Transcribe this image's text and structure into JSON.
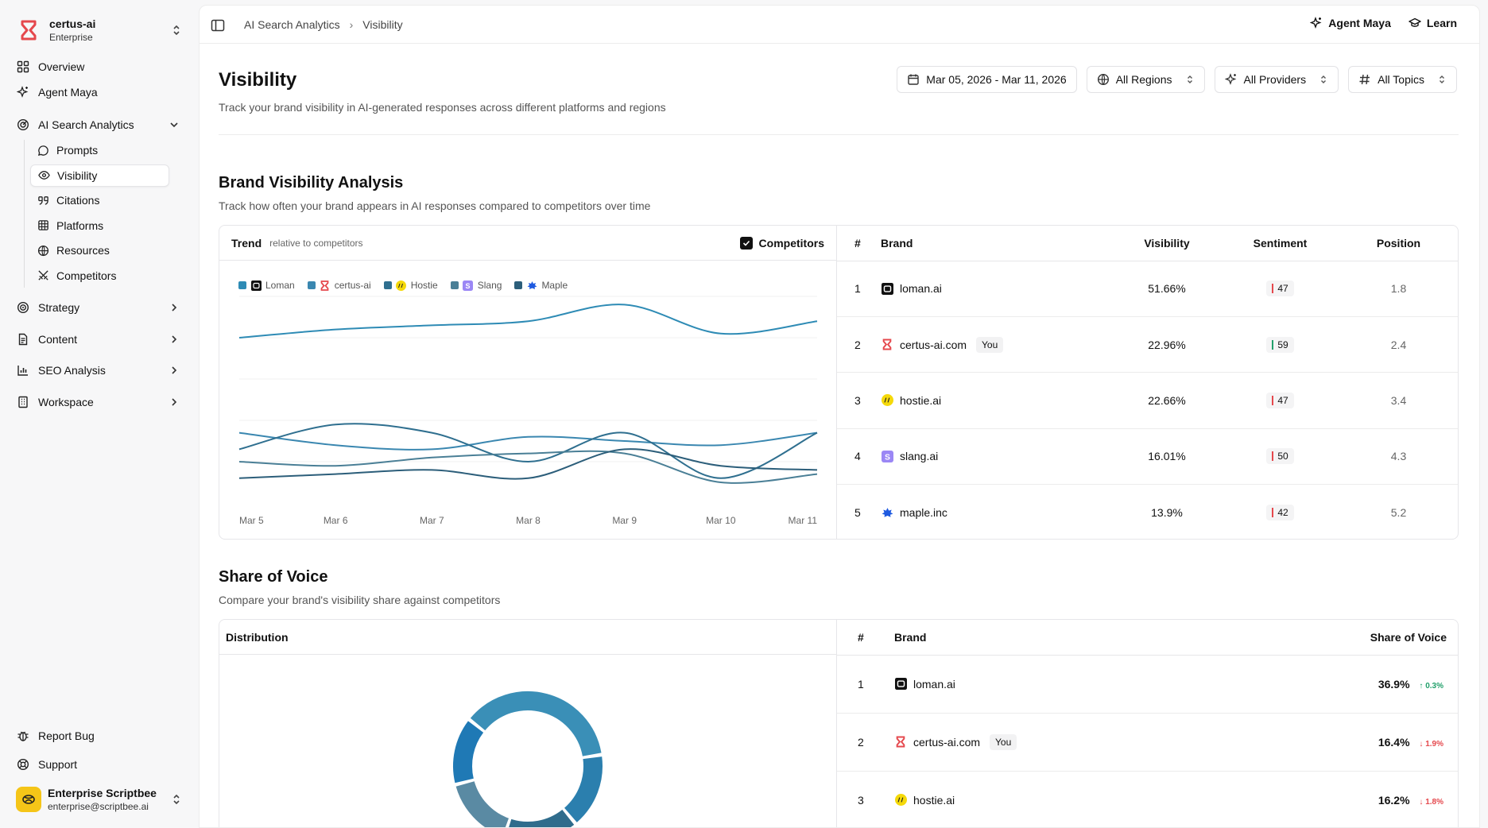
{
  "org": {
    "name": "certus-ai",
    "plan": "Enterprise"
  },
  "nav": {
    "overview": "Overview",
    "agent_maya": "Agent Maya",
    "ai_search": "AI Search Analytics",
    "sub": [
      "Prompts",
      "Visibility",
      "Citations",
      "Platforms",
      "Resources",
      "Competitors"
    ],
    "strategy": "Strategy",
    "content": "Content",
    "seo": "SEO Analysis",
    "workspace": "Workspace",
    "report_bug": "Report Bug",
    "support": "Support"
  },
  "user": {
    "name": "Enterprise Scriptbee",
    "email": "enterprise@scriptbee.ai"
  },
  "breadcrumb": {
    "parent": "AI Search Analytics",
    "current": "Visibility"
  },
  "top_actions": {
    "agent": "Agent Maya",
    "learn": "Learn"
  },
  "page": {
    "title": "Visibility",
    "subtitle": "Track your brand visibility in AI-generated responses across different platforms and regions"
  },
  "filters": {
    "date": "Mar 05, 2026 - Mar 11, 2026",
    "regions": "All Regions",
    "providers": "All Providers",
    "topics": "All Topics"
  },
  "brand_visibility": {
    "title": "Brand Visibility Analysis",
    "subtitle": "Track how often your brand appears in AI responses compared to competitors over time",
    "trend_label": "Trend",
    "trend_note": "relative to competitors",
    "competitors_label": "Competitors",
    "columns": [
      "#",
      "Brand",
      "Visibility",
      "Sentiment",
      "Position"
    ],
    "rows": [
      {
        "rank": "1",
        "brand": "loman.ai",
        "icon": "loman-icon",
        "you": "",
        "visibility": "51.66%",
        "sentiment": "47",
        "sentiment_color": "#e5484d",
        "position": "1.8"
      },
      {
        "rank": "2",
        "brand": "certus-ai.com",
        "icon": "certus-icon",
        "you": "You",
        "visibility": "22.96%",
        "sentiment": "59",
        "sentiment_color": "#22a06b",
        "position": "2.4"
      },
      {
        "rank": "3",
        "brand": "hostie.ai",
        "icon": "hostie-icon",
        "you": "",
        "visibility": "22.66%",
        "sentiment": "47",
        "sentiment_color": "#e5484d",
        "position": "3.4"
      },
      {
        "rank": "4",
        "brand": "slang.ai",
        "icon": "slang-icon",
        "you": "",
        "visibility": "16.01%",
        "sentiment": "50",
        "sentiment_color": "#e5484d",
        "position": "4.3"
      },
      {
        "rank": "5",
        "brand": "maple.inc",
        "icon": "maple-icon",
        "you": "",
        "visibility": "13.9%",
        "sentiment": "42",
        "sentiment_color": "#e5484d",
        "position": "5.2"
      }
    ]
  },
  "chart_data": {
    "type": "line",
    "x": [
      "Mar 5",
      "Mar 6",
      "Mar 7",
      "Mar 8",
      "Mar 9",
      "Mar 10",
      "Mar 11"
    ],
    "series": [
      {
        "name": "Loman",
        "color": "#2e8bb5",
        "values": [
          0.6,
          0.62,
          0.63,
          0.64,
          0.68,
          0.61,
          0.64
        ]
      },
      {
        "name": "certus-ai",
        "color": "#3a87b0",
        "values": [
          0.37,
          0.34,
          0.33,
          0.36,
          0.35,
          0.34,
          0.37
        ]
      },
      {
        "name": "Hostie",
        "color": "#2f6f8f",
        "values": [
          0.33,
          0.39,
          0.37,
          0.3,
          0.37,
          0.26,
          0.37
        ]
      },
      {
        "name": "Slang",
        "color": "#4a7f96",
        "values": [
          0.3,
          0.29,
          0.31,
          0.32,
          0.32,
          0.25,
          0.27
        ]
      },
      {
        "name": "Maple",
        "color": "#2c5e7a",
        "values": [
          0.26,
          0.27,
          0.28,
          0.26,
          0.33,
          0.29,
          0.28
        ]
      }
    ]
  },
  "share_of_voice": {
    "title": "Share of Voice",
    "subtitle": "Compare your brand's visibility share against competitors",
    "distribution_label": "Distribution",
    "columns": [
      "#",
      "Brand",
      "Share of Voice"
    ],
    "rows": [
      {
        "rank": "1",
        "brand": "loman.ai",
        "icon": "loman-icon",
        "you": "",
        "share": "36.9%",
        "delta": "0.3%",
        "dir": "up"
      },
      {
        "rank": "2",
        "brand": "certus-ai.com",
        "icon": "certus-icon",
        "you": "You",
        "share": "16.4%",
        "delta": "1.9%",
        "dir": "down"
      },
      {
        "rank": "3",
        "brand": "hostie.ai",
        "icon": "hostie-icon",
        "you": "",
        "share": "16.2%",
        "delta": "1.8%",
        "dir": "down"
      }
    ],
    "donut": [
      {
        "brand": "loman.ai",
        "value": 36.9,
        "color": "#3a8fb7"
      },
      {
        "brand": "certus-ai.com",
        "value": 16.4,
        "color": "#2b7fae"
      },
      {
        "brand": "hostie.ai",
        "value": 16.2,
        "color": "#2f6c8c"
      },
      {
        "brand": "slang.ai",
        "value": 15.8,
        "color": "#5a8aa3"
      },
      {
        "brand": "maple.inc",
        "value": 14.7,
        "color": "#1f79b5"
      }
    ]
  }
}
